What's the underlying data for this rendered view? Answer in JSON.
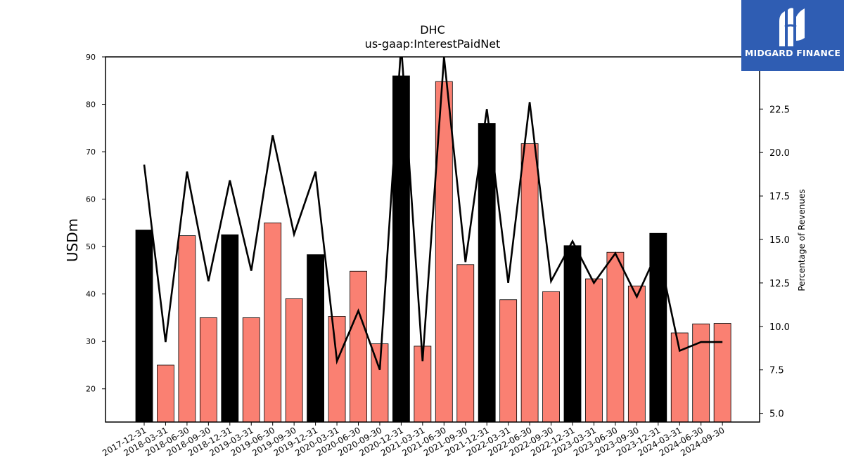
{
  "brand": {
    "logo_text": "MIDGARD FINANCE",
    "logo_bg": "#2f5db3"
  },
  "colors": {
    "bar_annual": "#000000",
    "bar_quarter": "#fa8072",
    "line": "#000000"
  },
  "chart_data": {
    "type": "bar",
    "title": "DHC",
    "subtitle": "us-gaap:InterestPaidNet",
    "ylabel": "USDm",
    "y2label": "Percentage of Revenues",
    "ylim": [
      13,
      90
    ],
    "y2lim": [
      4.5,
      25.5
    ],
    "yticks": [
      "20",
      "30",
      "40",
      "50",
      "60",
      "70",
      "80",
      "90"
    ],
    "y2ticks": [
      "5.0",
      "7.5",
      "10.0",
      "12.5",
      "15.0",
      "17.5",
      "20.0",
      "22.5"
    ],
    "categories": [
      "2017-12-31",
      "2018-03-31",
      "2018-06-30",
      "2018-09-30",
      "2018-12-31",
      "2019-03-31",
      "2019-06-30",
      "2019-09-30",
      "2019-12-31",
      "2020-03-31",
      "2020-06-30",
      "2020-09-30",
      "2020-12-31",
      "2021-03-31",
      "2021-06-30",
      "2021-09-30",
      "2021-12-31",
      "2022-03-31",
      "2022-06-30",
      "2022-09-30",
      "2022-12-31",
      "2023-03-31",
      "2023-06-30",
      "2023-09-30",
      "2023-12-31",
      "2024-03-31",
      "2024-06-30",
      "2024-09-30"
    ],
    "series": [
      {
        "kind": "bar",
        "values": [
          53.5,
          25,
          52.3,
          35,
          52.5,
          35,
          55,
          39,
          48.3,
          35.3,
          44.8,
          29.5,
          86,
          29,
          84.8,
          46.2,
          76,
          38.8,
          71.7,
          40.5,
          50.2,
          43.2,
          48.8,
          41.7,
          52.8,
          31.8,
          33.7,
          33.8
        ],
        "annual": [
          true,
          false,
          false,
          false,
          true,
          false,
          false,
          false,
          true,
          false,
          false,
          false,
          true,
          false,
          false,
          false,
          true,
          false,
          false,
          false,
          true,
          false,
          false,
          false,
          true,
          false,
          false,
          false
        ]
      },
      {
        "kind": "line",
        "axis": "right",
        "values": [
          19.3,
          9.1,
          18.9,
          12.6,
          18.4,
          13.2,
          21.0,
          15.3,
          18.9,
          8.0,
          10.9,
          7.5,
          26.2,
          8.0,
          25.5,
          13.7,
          22.5,
          12.5,
          22.9,
          12.6,
          14.9,
          12.5,
          14.2,
          11.7,
          14.4,
          8.6,
          9.1,
          9.1
        ]
      }
    ]
  }
}
